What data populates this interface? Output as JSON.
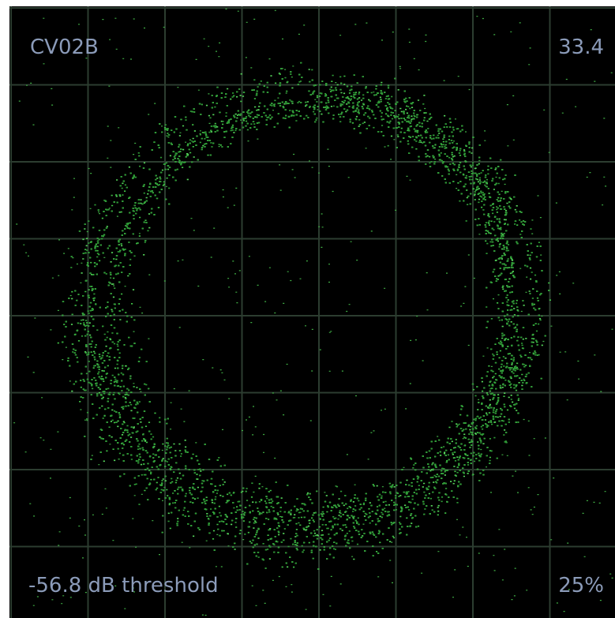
{
  "panel": {
    "label": "CV02B",
    "top_right": "33.4",
    "threshold": "-56.8 dB threshold",
    "percent": "25%"
  }
}
